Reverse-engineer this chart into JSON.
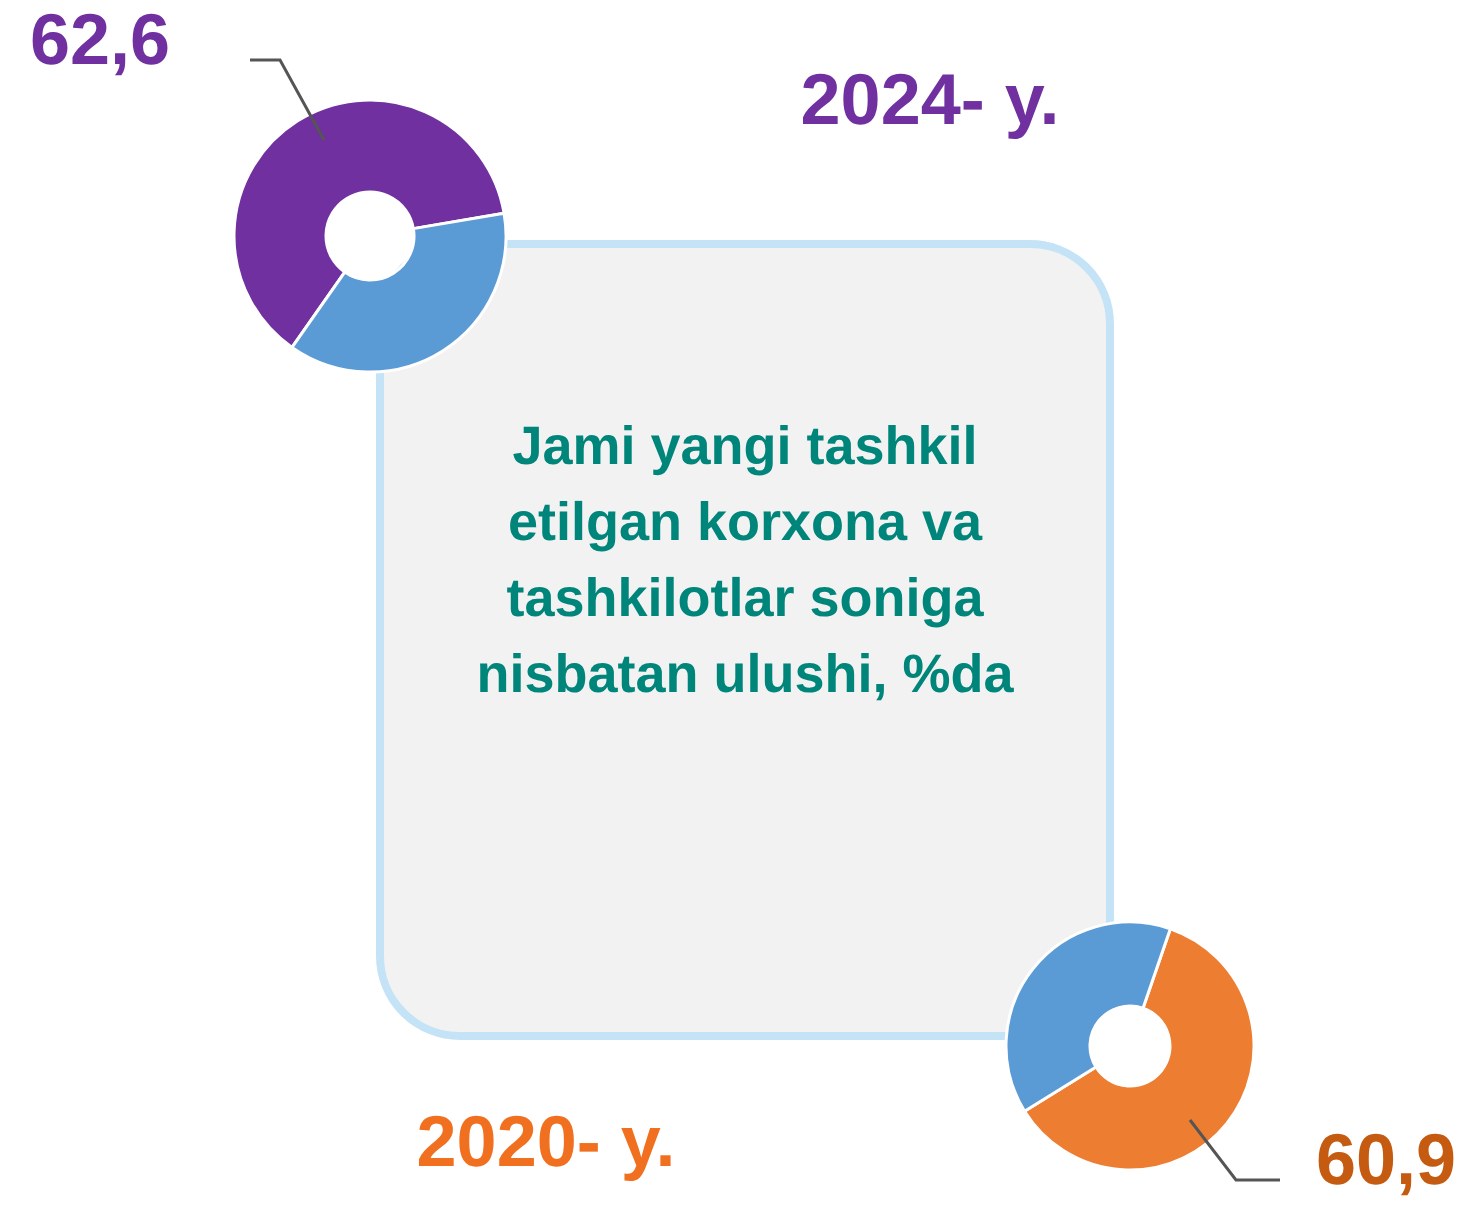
{
  "chart_data": [
    {
      "type": "donut",
      "title": "2024- y.",
      "categories": [
        null,
        null
      ],
      "values": [
        62.6,
        37.4
      ],
      "colors": [
        "#7030a0",
        "#5b9bd5"
      ],
      "value_labels": [
        "62,6",
        null
      ]
    },
    {
      "type": "other",
      "title": "Jami yangi tashkil etilgan korxona va tashkilotlar soniga nisbatan ulushi, %da"
    },
    {
      "type": "donut",
      "title": "2020- y.",
      "categories": [
        null,
        null
      ],
      "values": [
        60.9,
        39.1
      ],
      "colors": [
        "#ed7d31",
        "#5b9bd5"
      ],
      "value_labels": [
        "60,9",
        null
      ]
    }
  ]
}
